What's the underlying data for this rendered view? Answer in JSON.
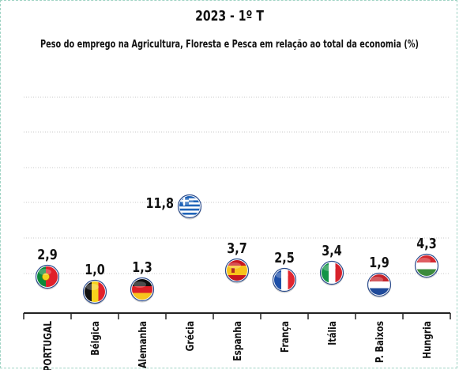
{
  "chart_data": {
    "type": "scatter",
    "title": "2023 - 1º T",
    "subtitle": "Peso do emprego na Agricultura, Floresta e Pesca em relação ao total da economia (%)",
    "categories": [
      "PORTUGAL",
      "Bélgica",
      "Alemanha",
      "Grécia",
      "Espanha",
      "França",
      "Itália",
      "P. Baixos",
      "Hungria"
    ],
    "values": [
      2.9,
      1.0,
      1.3,
      11.8,
      3.7,
      2.5,
      3.4,
      1.9,
      4.3
    ],
    "labels": [
      "2,9",
      "1,0",
      "1,3",
      "11,8",
      "3,7",
      "2,5",
      "3,4",
      "1,9",
      "4,3"
    ],
    "markers": [
      "flag-portugal",
      "flag-belgium",
      "flag-germany",
      "flag-greece",
      "flag-spain",
      "flag-france",
      "flag-italy",
      "flag-netherlands",
      "flag-hungary"
    ],
    "grid": true,
    "colors": {
      "grid": "#c8c8c8",
      "axis": "#222222",
      "frame": "#9fd3c4",
      "marker_border": "#2a4b8c"
    }
  }
}
